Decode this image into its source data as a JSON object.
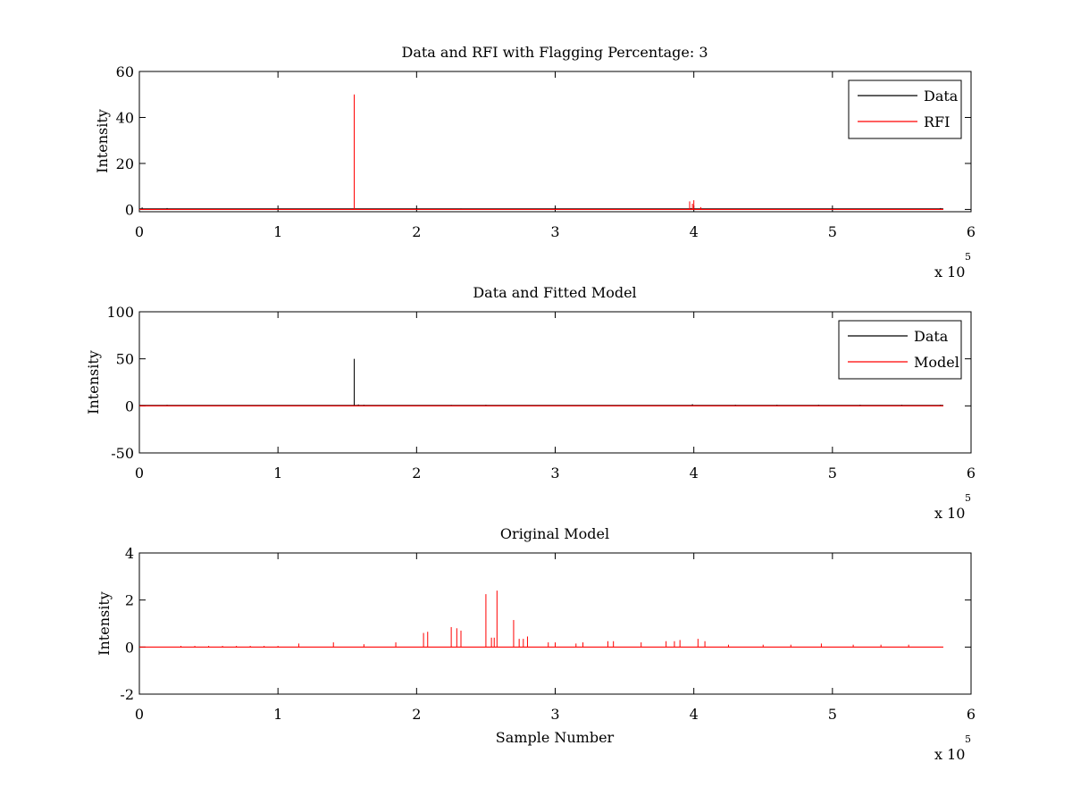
{
  "figure": {
    "x_exponent_base": "x 10",
    "x_exponent_power": "5"
  },
  "chart_data": [
    {
      "type": "line",
      "title": "Data and RFI with Flagging Percentage: 3",
      "xlabel": "",
      "ylabel": "Intensity",
      "xlim": [
        0,
        6
      ],
      "ylim": [
        -1,
        60
      ],
      "x_units_multiplier": 100000,
      "xticks": [
        "0",
        "1",
        "2",
        "3",
        "4",
        "5",
        "6"
      ],
      "yticks": [
        {
          "value": 0,
          "label": "0"
        },
        {
          "value": 20,
          "label": "20"
        },
        {
          "value": 40,
          "label": "40"
        },
        {
          "value": 60,
          "label": "60"
        }
      ],
      "legend": {
        "position": "top-right"
      },
      "grid": false,
      "series": [
        {
          "name": "Data",
          "color": "#000000",
          "baseline": 0.2,
          "x_end": 5.8,
          "spikes": [
            [
              0.02,
              0.9
            ],
            [
              0.2,
              0.6
            ],
            [
              2.32,
              0.4
            ],
            [
              3.98,
              0.5
            ],
            [
              5.78,
              0.6
            ]
          ]
        },
        {
          "name": "RFI",
          "color": "#ff0000",
          "baseline": 0,
          "x_end": 5.8,
          "spikes": [
            [
              1.55,
              50
            ],
            [
              3.97,
              3.5
            ],
            [
              3.99,
              2.5
            ],
            [
              4.0,
              4
            ],
            [
              4.05,
              1
            ]
          ]
        }
      ]
    },
    {
      "type": "line",
      "title": "Data and Fitted Model",
      "xlabel": "",
      "ylabel": "Intensity",
      "xlim": [
        0,
        6
      ],
      "ylim": [
        -50,
        100
      ],
      "x_units_multiplier": 100000,
      "xticks": [
        "0",
        "1",
        "2",
        "3",
        "4",
        "5",
        "6"
      ],
      "yticks": [
        {
          "value": -50,
          "label": "-50"
        },
        {
          "value": 0,
          "label": "0"
        },
        {
          "value": 50,
          "label": "50"
        },
        {
          "value": 100,
          "label": "100"
        }
      ],
      "legend": {
        "position": "top-right"
      },
      "grid": false,
      "series": [
        {
          "name": "Data",
          "color": "#000000",
          "baseline": 0.5,
          "x_end": 5.8,
          "spikes": [
            [
              0.2,
              1.2
            ],
            [
              1.55,
              50
            ],
            [
              1.58,
              1.5
            ],
            [
              1.62,
              1.2
            ],
            [
              2.25,
              1
            ],
            [
              2.5,
              1.2
            ],
            [
              3.2,
              0.8
            ],
            [
              3.99,
              1.8
            ],
            [
              4.3,
              1.2
            ],
            [
              4.6,
              1.2
            ],
            [
              4.9,
              1.2
            ],
            [
              5.2,
              1.2
            ],
            [
              5.5,
              1.2
            ],
            [
              5.78,
              1.2
            ]
          ]
        },
        {
          "name": "Model",
          "color": "#ff0000",
          "baseline": 0,
          "x_end": 5.8,
          "spikes": [
            [
              0.2,
              0.6
            ],
            [
              2.5,
              0.5
            ],
            [
              4.0,
              0.6
            ]
          ]
        }
      ]
    },
    {
      "type": "line",
      "title": "Original Model",
      "xlabel": "Sample Number",
      "ylabel": "Intensity",
      "xlim": [
        0,
        6
      ],
      "ylim": [
        -2,
        4
      ],
      "x_units_multiplier": 100000,
      "xticks": [
        "0",
        "1",
        "2",
        "3",
        "4",
        "5",
        "6"
      ],
      "yticks": [
        {
          "value": -2,
          "label": "-2"
        },
        {
          "value": 0,
          "label": "0"
        },
        {
          "value": 2,
          "label": "2"
        },
        {
          "value": 4,
          "label": "4"
        }
      ],
      "legend": null,
      "grid": false,
      "series": [
        {
          "color": "#ff0000",
          "baseline": 0,
          "x_end": 5.8,
          "spikes": [
            [
              0.3,
              0.05
            ],
            [
              0.4,
              0.05
            ],
            [
              0.5,
              0.05
            ],
            [
              0.6,
              0.05
            ],
            [
              0.7,
              0.05
            ],
            [
              0.8,
              0.05
            ],
            [
              0.9,
              0.05
            ],
            [
              1.0,
              0.05
            ],
            [
              1.15,
              0.15
            ],
            [
              1.4,
              0.2
            ],
            [
              1.62,
              0.12
            ],
            [
              1.85,
              0.2
            ],
            [
              2.05,
              0.6
            ],
            [
              2.08,
              0.65
            ],
            [
              2.25,
              0.85
            ],
            [
              2.29,
              0.8
            ],
            [
              2.32,
              0.7
            ],
            [
              2.5,
              2.25
            ],
            [
              2.54,
              0.4
            ],
            [
              2.58,
              2.4
            ],
            [
              2.56,
              0.4
            ],
            [
              2.7,
              1.15
            ],
            [
              2.74,
              0.35
            ],
            [
              2.77,
              0.35
            ],
            [
              2.8,
              0.45
            ],
            [
              2.95,
              0.2
            ],
            [
              3.0,
              0.2
            ],
            [
              3.15,
              0.15
            ],
            [
              3.2,
              0.2
            ],
            [
              3.38,
              0.25
            ],
            [
              3.42,
              0.25
            ],
            [
              3.62,
              0.2
            ],
            [
              3.8,
              0.25
            ],
            [
              3.86,
              0.25
            ],
            [
              3.9,
              0.3
            ],
            [
              4.03,
              0.35
            ],
            [
              4.08,
              0.25
            ],
            [
              4.25,
              0.1
            ],
            [
              4.5,
              0.1
            ],
            [
              4.7,
              0.1
            ],
            [
              4.92,
              0.15
            ],
            [
              5.15,
              0.1
            ],
            [
              5.35,
              0.1
            ],
            [
              5.55,
              0.1
            ]
          ]
        }
      ]
    }
  ]
}
